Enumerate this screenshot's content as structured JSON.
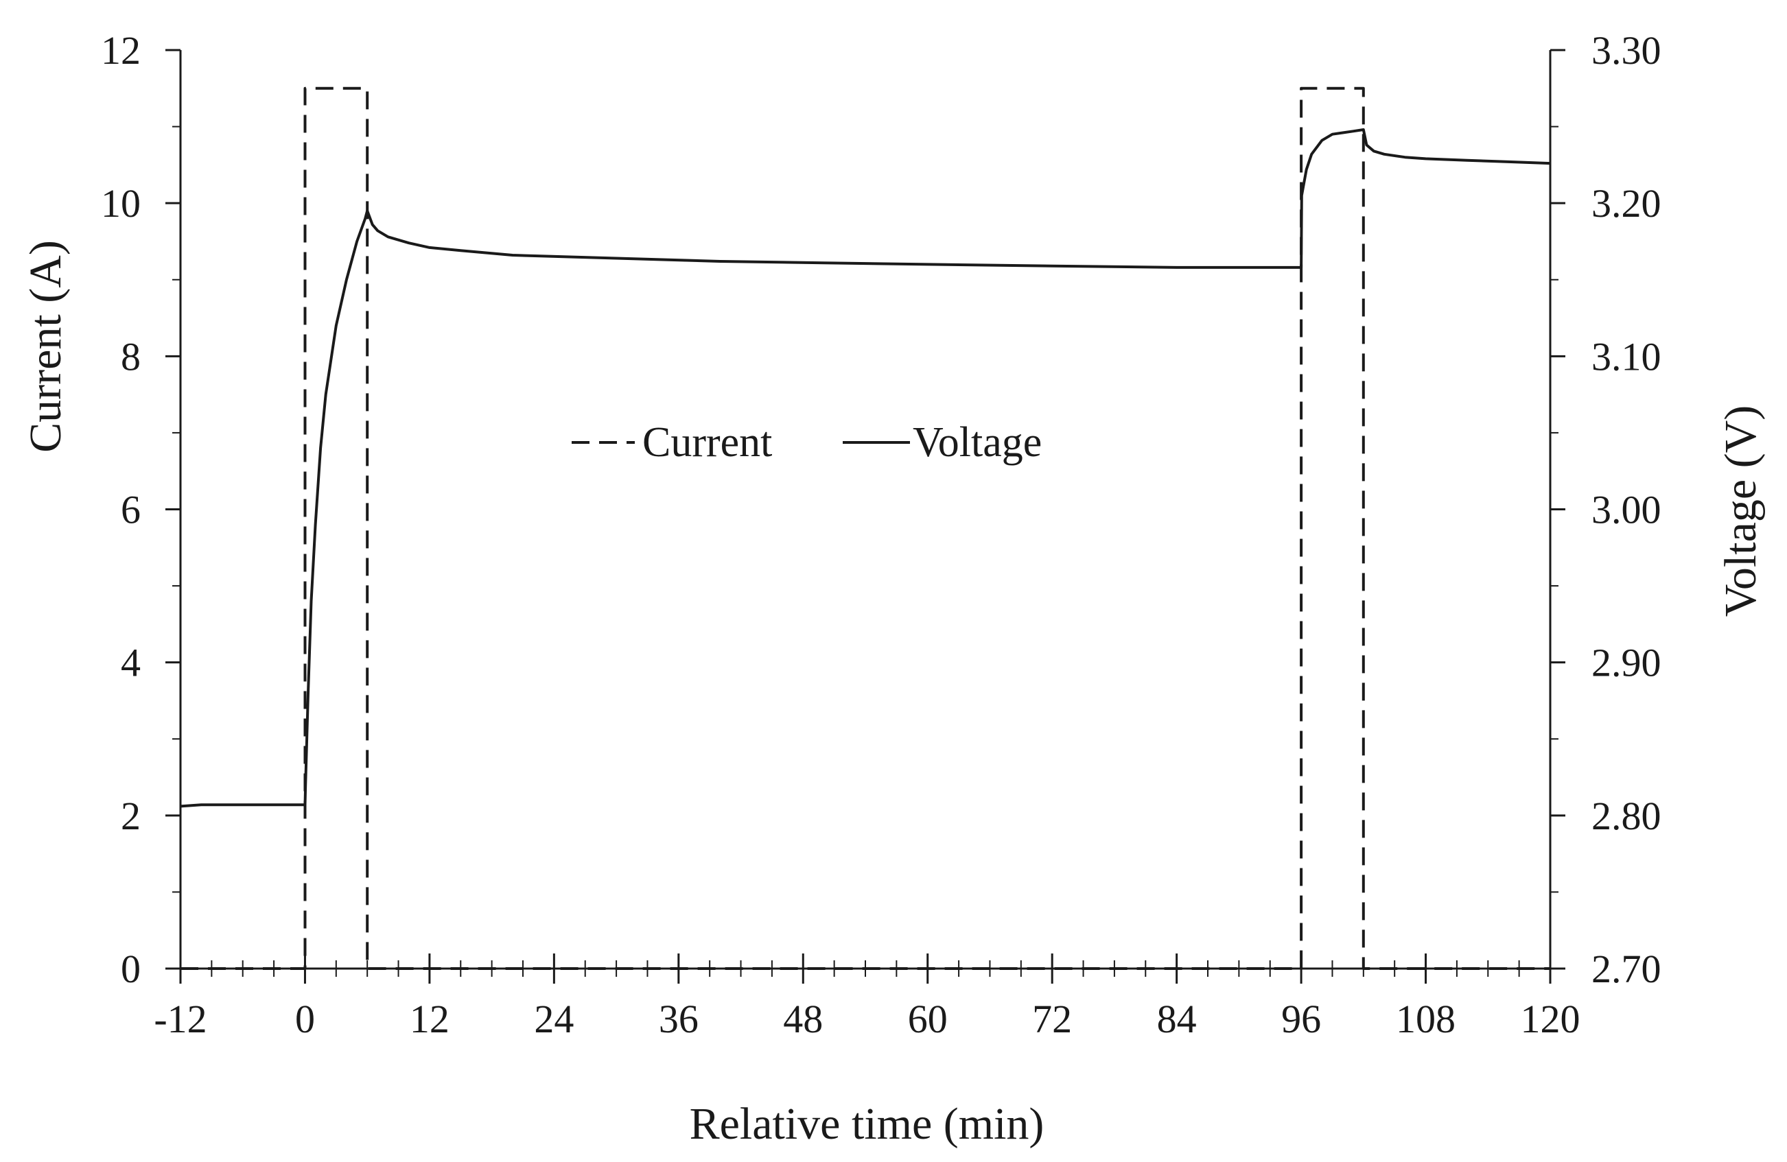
{
  "chart_data": {
    "type": "line",
    "xlabel": "Relative time (min)",
    "ylabel_left": "Current (A)",
    "ylabel_right": "Voltage (V)",
    "xlim": [
      -12,
      120
    ],
    "ylim_left": [
      0,
      12
    ],
    "ylim_right": [
      2.7,
      3.3
    ],
    "x_ticks": [
      -12,
      0,
      12,
      24,
      36,
      48,
      60,
      72,
      84,
      96,
      108,
      120
    ],
    "y_left_ticks": [
      0,
      2,
      4,
      6,
      8,
      10,
      12
    ],
    "y_right_ticks": [
      "2.70",
      "2.80",
      "2.90",
      "3.00",
      "3.10",
      "3.20",
      "3.30"
    ],
    "grid": false,
    "legend_position": "center",
    "series": [
      {
        "name": "Current",
        "axis": "left",
        "style": "dashed",
        "color": "#1a1a1a",
        "x": [
          -12,
          0,
          0,
          6,
          6,
          96,
          96,
          102,
          102,
          120
        ],
        "y": [
          0,
          0,
          11.5,
          11.5,
          0,
          0,
          11.5,
          11.5,
          0,
          0
        ]
      },
      {
        "name": "Voltage",
        "axis": "right",
        "style": "solid",
        "color": "#1a1a1a",
        "x": [
          -12,
          -10,
          -5,
          0,
          0.05,
          0.3,
          0.6,
          1,
          1.5,
          2,
          3,
          4,
          5,
          5.8,
          6,
          6.5,
          7,
          8,
          10,
          12,
          15,
          20,
          30,
          40,
          50,
          60,
          72,
          84,
          96,
          96.05,
          96.5,
          97,
          98,
          99,
          100,
          101,
          102,
          102.3,
          103,
          104,
          106,
          108,
          112,
          116,
          120
        ],
        "y": [
          2.806,
          2.807,
          2.807,
          2.807,
          2.82,
          2.88,
          2.94,
          2.99,
          3.04,
          3.075,
          3.12,
          3.15,
          3.175,
          3.19,
          3.195,
          3.186,
          3.182,
          3.178,
          3.174,
          3.171,
          3.169,
          3.166,
          3.164,
          3.162,
          3.161,
          3.16,
          3.159,
          3.158,
          3.158,
          3.205,
          3.222,
          3.232,
          3.241,
          3.245,
          3.246,
          3.247,
          3.248,
          3.238,
          3.234,
          3.232,
          3.23,
          3.229,
          3.228,
          3.227,
          3.226
        ]
      }
    ]
  }
}
